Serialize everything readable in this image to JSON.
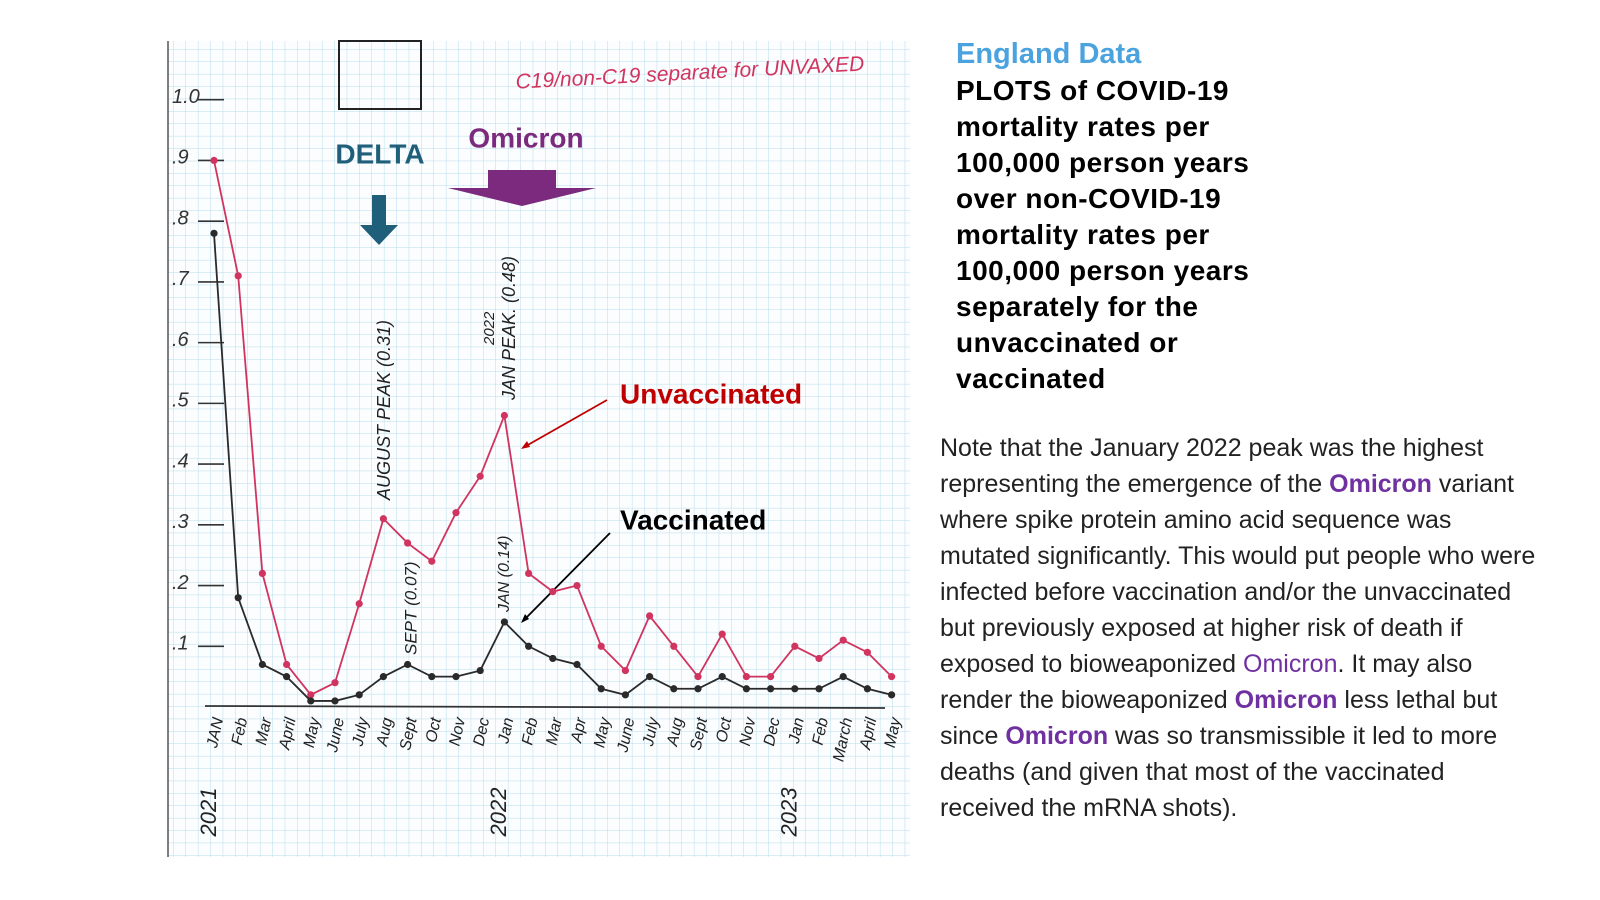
{
  "chart_data": {
    "type": "line",
    "title": "C19/non-C19 separate for UNVAXED",
    "categories": [
      "JAN",
      "Feb",
      "Mar",
      "April",
      "May",
      "June",
      "July",
      "Aug",
      "Sept",
      "Oct",
      "Nov",
      "Dec",
      "Jan",
      "Feb",
      "Mar",
      "Apr",
      "May",
      "June",
      "July",
      "Aug",
      "Sept",
      "Oct",
      "Nov",
      "Dec",
      "Jan",
      "Feb",
      "March",
      "April",
      "May"
    ],
    "year_labels": [
      "2021",
      null,
      null,
      null,
      null,
      null,
      null,
      null,
      null,
      null,
      null,
      null,
      "2022",
      null,
      null,
      null,
      null,
      null,
      null,
      null,
      null,
      null,
      null,
      null,
      "2023",
      null,
      null,
      null,
      null
    ],
    "series": [
      {
        "name": "Unvaccinated",
        "color": "#d0345f",
        "label_color": "#c00000",
        "values": [
          0.9,
          0.71,
          0.22,
          0.07,
          0.02,
          0.04,
          0.17,
          0.31,
          0.27,
          0.24,
          0.32,
          0.38,
          0.48,
          0.22,
          0.19,
          0.2,
          0.1,
          0.06,
          0.15,
          0.1,
          0.05,
          0.12,
          0.05,
          0.05,
          0.1,
          0.08,
          0.11,
          0.09,
          0.05
        ]
      },
      {
        "name": "Vaccinated",
        "color": "#2a2a2a",
        "label_color": "#000000",
        "values": [
          0.78,
          0.18,
          0.07,
          0.05,
          0.01,
          0.01,
          0.02,
          0.05,
          0.07,
          0.05,
          0.05,
          0.06,
          0.14,
          0.1,
          0.08,
          0.07,
          0.03,
          0.02,
          0.05,
          0.03,
          0.03,
          0.05,
          0.03,
          0.03,
          0.03,
          0.03,
          0.05,
          0.03,
          0.02
        ]
      }
    ],
    "ylim": [
      0,
      1.1
    ],
    "yticks": [
      {
        "value": 0.1,
        "label": ".1"
      },
      {
        "value": 0.2,
        "label": ".2"
      },
      {
        "value": 0.3,
        "label": ".3"
      },
      {
        "value": 0.4,
        "label": ".4"
      },
      {
        "value": 0.5,
        "label": ".5"
      },
      {
        "value": 0.6,
        "label": ".6"
      },
      {
        "value": 0.7,
        "label": ".7"
      },
      {
        "value": 0.8,
        "label": ".8"
      },
      {
        "value": 0.9,
        "label": ".9"
      },
      {
        "value": 1.0,
        "label": "1.0"
      }
    ],
    "annotations": {
      "delta": "DELTA",
      "omicron": "Omicron",
      "august_peak": "AUGUST PEAK (0.31)",
      "jan_peak_year": "2022",
      "jan_peak": "JAN PEAK. (0.48)",
      "sept": "SEPT (0.07)",
      "jan": "JAN (0.14)"
    }
  },
  "panel": {
    "subtitle": "England Data",
    "heading_lines": [
      "PLOTS of COVID-19",
      "mortality rates per",
      "100,000 person years",
      "over non-COVID-19",
      "mortality rates per",
      "100,000 person years",
      "separately for the",
      "unvaccinated or",
      "vaccinated"
    ],
    "note": [
      {
        "text": "Note that the January 2022 peak was the highest representing the emergence of the ",
        "bold": false
      },
      {
        "text": "Omicron",
        "bold": true,
        "color": "#7030a0"
      },
      {
        "text": " variant where spike protein amino acid sequence was mutated significantly. This would put people who were infected before vaccination and/or the unvaccinated  but previously exposed at higher risk of death if exposed to bioweaponized ",
        "bold": false
      },
      {
        "text": "Omicron",
        "bold": false,
        "color": "#7030a0"
      },
      {
        "text": ". It may also render the bioweaponized ",
        "bold": false
      },
      {
        "text": "Omicron",
        "bold": true,
        "color": "#7030a0"
      },
      {
        "text": " less lethal but since ",
        "bold": false
      },
      {
        "text": "Omicron",
        "bold": true,
        "color": "#7030a0"
      },
      {
        "text": " was so transmissible it led to more deaths (and given that most of the vaccinated received the mRNA shots).",
        "bold": false
      }
    ]
  }
}
